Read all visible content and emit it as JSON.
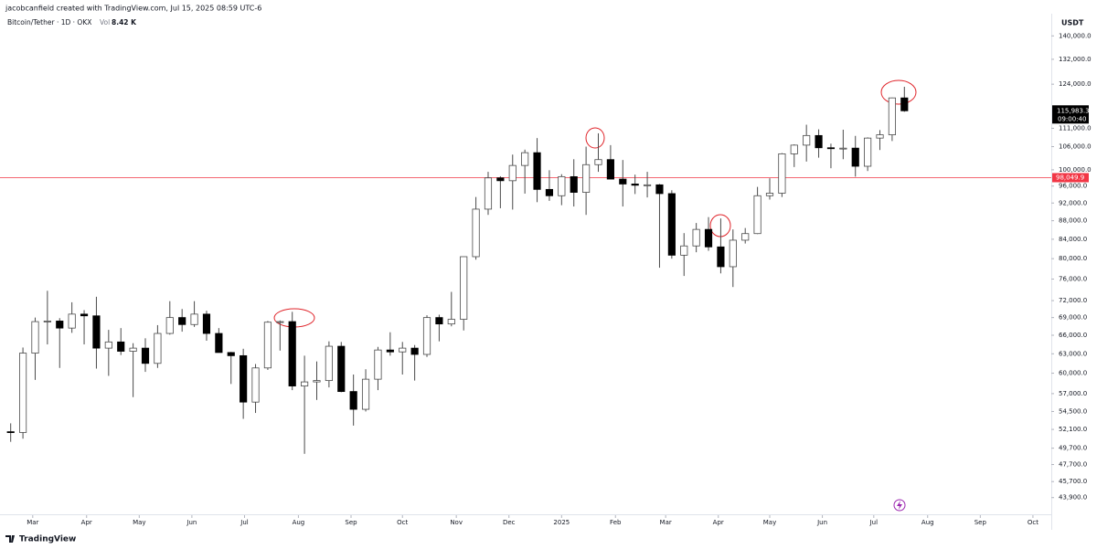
{
  "header": {
    "credit": "jacobcanfield created with TradingView.com, Jul 15, 2025 08:59 UTC-6"
  },
  "footer": {
    "brand": "TradingView"
  },
  "chart_data": {
    "type": "candlestick",
    "title": "Bitcoin/Tether · 1D · OKX",
    "volume_label": "Vol",
    "volume_value": "8.42 K",
    "y_axis_label": "USDT",
    "log_scale": true,
    "up_color": "#ffffff",
    "down_color": "#000000",
    "wick_color": "#4a4a4a",
    "categories": [
      null,
      null,
      null,
      null,
      null,
      null,
      null,
      null,
      null,
      null,
      null,
      null,
      null,
      null,
      null,
      null,
      null,
      null,
      null,
      null,
      null,
      null,
      null,
      null,
      null,
      null,
      null,
      null,
      null,
      null,
      null,
      null,
      null,
      null,
      null,
      null,
      null,
      null,
      null,
      null,
      null,
      null,
      null,
      null,
      null,
      null,
      null,
      null,
      null,
      null,
      null,
      null,
      null,
      null,
      null,
      null,
      null,
      null,
      null,
      null,
      null,
      null,
      null,
      null,
      null,
      null,
      null,
      null,
      null,
      null,
      null,
      null,
      null,
      null
    ],
    "open": [
      51800,
      51700,
      63100,
      68300,
      68400,
      67200,
      69600,
      69300,
      63900,
      64900,
      63400,
      63900,
      61500,
      66300,
      69000,
      67800,
      69600,
      66300,
      63200,
      62700,
      55800,
      60800,
      68200,
      68300,
      58100,
      58700,
      58900,
      64200,
      57300,
      54800,
      59100,
      63600,
      63300,
      63900,
      62900,
      69000,
      67900,
      68700,
      80400,
      90600,
      98000,
      97300,
      101100,
      104400,
      95200,
      93700,
      98300,
      94500,
      101300,
      102600,
      97700,
      96500,
      96200,
      96300,
      94200,
      80700,
      82600,
      86100,
      82400,
      78400,
      83800,
      85200,
      93700,
      94300,
      104100,
      106400,
      109000,
      105700,
      105600,
      105600,
      100900,
      108300,
      109200,
      119800
    ],
    "high": [
      52900,
      64000,
      69000,
      73800,
      68900,
      71700,
      70300,
      72700,
      66900,
      67200,
      64700,
      65500,
      67700,
      71900,
      70500,
      71900,
      70200,
      67200,
      63300,
      63800,
      61400,
      68400,
      68500,
      70000,
      62700,
      61800,
      65000,
      64900,
      59800,
      60600,
      64100,
      66500,
      64900,
      64400,
      69400,
      69500,
      73600,
      80300,
      93400,
      99500,
      98400,
      103900,
      105200,
      108300,
      99900,
      98900,
      102700,
      106000,
      109600,
      106400,
      102500,
      98800,
      99500,
      96500,
      95000,
      85300,
      87500,
      88800,
      88500,
      86100,
      86400,
      95800,
      97900,
      104300,
      106600,
      112000,
      110700,
      106800,
      110600,
      108900,
      108500,
      110500,
      119900,
      123200
    ],
    "low": [
      50500,
      50900,
      59000,
      64500,
      60800,
      66400,
      64500,
      60700,
      59600,
      62800,
      56500,
      60200,
      60800,
      66100,
      66600,
      67400,
      65100,
      63400,
      58400,
      53500,
      54300,
      60500,
      63500,
      57500,
      49000,
      56100,
      57900,
      57200,
      52600,
      54500,
      57500,
      62700,
      59800,
      58900,
      62500,
      65000,
      67500,
      66800,
      79800,
      89300,
      90800,
      90500,
      94200,
      92200,
      92500,
      91500,
      91200,
      89300,
      99500,
      97800,
      91200,
      94100,
      93300,
      78200,
      80000,
      76600,
      81300,
      81600,
      77100,
      74500,
      83100,
      85100,
      92800,
      93400,
      100700,
      102100,
      103100,
      100400,
      102700,
      98300,
      99700,
      105100,
      107500,
      115700
    ],
    "close": [
      51700,
      63100,
      68300,
      68400,
      67200,
      69600,
      69300,
      63900,
      64900,
      63400,
      63900,
      61500,
      66300,
      69000,
      67800,
      69600,
      66300,
      63200,
      62700,
      55800,
      60800,
      68200,
      68300,
      58100,
      58700,
      58900,
      64200,
      57300,
      54800,
      59100,
      63600,
      63300,
      63900,
      62900,
      69000,
      67900,
      68700,
      80400,
      90600,
      98000,
      97300,
      101100,
      104400,
      95200,
      93700,
      98300,
      94500,
      101300,
      102600,
      97700,
      96500,
      96200,
      96300,
      94200,
      80700,
      82600,
      86100,
      82400,
      78400,
      83800,
      85200,
      93700,
      94300,
      104100,
      106400,
      109000,
      105700,
      105600,
      105600,
      100900,
      108300,
      109200,
      119800,
      115983.3
    ],
    "xlim": [
      -0.5,
      85
    ],
    "xticks": [
      {
        "value": 1.8,
        "label": "Mar"
      },
      {
        "value": 6.2,
        "label": "Apr"
      },
      {
        "value": 10.5,
        "label": "May"
      },
      {
        "value": 14.8,
        "label": "Jun"
      },
      {
        "value": 19.1,
        "label": "Jul"
      },
      {
        "value": 23.5,
        "label": "Aug"
      },
      {
        "value": 27.8,
        "label": "Sep"
      },
      {
        "value": 32.0,
        "label": "Oct"
      },
      {
        "value": 36.4,
        "label": "Nov"
      },
      {
        "value": 40.7,
        "label": "Dec"
      },
      {
        "value": 45.0,
        "label": "2025"
      },
      {
        "value": 49.4,
        "label": "Feb"
      },
      {
        "value": 53.5,
        "label": "Mar"
      },
      {
        "value": 57.8,
        "label": "Apr"
      },
      {
        "value": 62.0,
        "label": "May"
      },
      {
        "value": 66.3,
        "label": "Jun"
      },
      {
        "value": 70.5,
        "label": "Jul"
      },
      {
        "value": 74.9,
        "label": "Aug"
      },
      {
        "value": 79.2,
        "label": "Sep"
      },
      {
        "value": 83.5,
        "label": "Oct"
      }
    ],
    "ylim": [
      42000,
      147000
    ],
    "yticks": [
      {
        "value": 140000,
        "label": "140,000.0"
      },
      {
        "value": 132000,
        "label": "132,000.0"
      },
      {
        "value": 124000,
        "label": "124,000.0"
      },
      {
        "value": 111000,
        "label": "111,000.0"
      },
      {
        "value": 106000,
        "label": "106,000.0"
      },
      {
        "value": 100000,
        "label": "100,000.0"
      },
      {
        "value": 96000,
        "label": "96,000.0"
      },
      {
        "value": 92000,
        "label": "92,000.0"
      },
      {
        "value": 88000,
        "label": "88,000.0"
      },
      {
        "value": 84000,
        "label": "84,000.0"
      },
      {
        "value": 80000,
        "label": "80,000.0"
      },
      {
        "value": 76000,
        "label": "76,000.0"
      },
      {
        "value": 72000,
        "label": "72,000.0"
      },
      {
        "value": 69000,
        "label": "69,000.0"
      },
      {
        "value": 66000,
        "label": "66,000.0"
      },
      {
        "value": 63000,
        "label": "63,000.0"
      },
      {
        "value": 60000,
        "label": "60,000.0"
      },
      {
        "value": 57000,
        "label": "57,000.0"
      },
      {
        "value": 54500,
        "label": "54,500.0"
      },
      {
        "value": 52100,
        "label": "52,100.0"
      },
      {
        "value": 49700,
        "label": "49,700.0"
      },
      {
        "value": 47700,
        "label": "47,700.0"
      },
      {
        "value": 45700,
        "label": "45,700.0"
      },
      {
        "value": 43900,
        "label": "43,900.0"
      }
    ],
    "price_line": {
      "value": 98049.9,
      "label": "98,049.9",
      "color": "#f23645"
    },
    "last_price": {
      "value": 115983.3,
      "label": "115,983.3",
      "time": "09:00:40",
      "color": "#000000"
    }
  }
}
